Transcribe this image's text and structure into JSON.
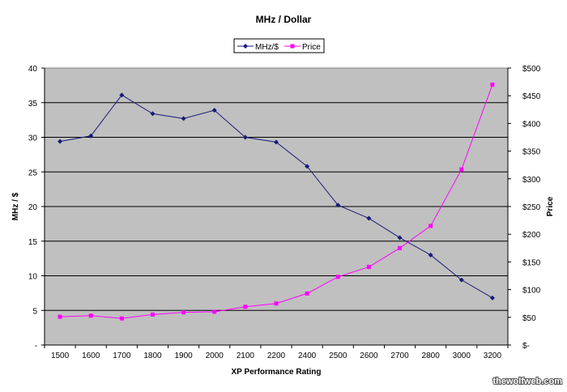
{
  "chart_data": {
    "type": "line",
    "title": "MHz / Dollar",
    "xlabel": "XP Performance Rating",
    "ylabel": "MHz / $",
    "y2label": "Price",
    "categories": [
      "1500",
      "1600",
      "1700",
      "1800",
      "1900",
      "2000",
      "2100",
      "2200",
      "2400",
      "2500",
      "2600",
      "2700",
      "2800",
      "3000",
      "3200"
    ],
    "ylim": [
      0,
      40
    ],
    "y2lim": [
      0,
      500
    ],
    "yticks": [
      "-",
      "5",
      "10",
      "15",
      "20",
      "25",
      "30",
      "35",
      "40"
    ],
    "y2ticks": [
      "$-",
      "$50",
      "$100",
      "$150",
      "$200",
      "$250",
      "$300",
      "$350",
      "$400",
      "$450",
      "$500"
    ],
    "grid": true,
    "legend_position": "top",
    "series": [
      {
        "name": "MHz/$",
        "axis": "left",
        "color": "#1a1a7a",
        "marker": "diamond",
        "values": [
          29.4,
          30.2,
          36.1,
          33.4,
          32.7,
          33.9,
          30.0,
          29.3,
          25.8,
          20.2,
          18.3,
          15.5,
          13.0,
          9.4,
          6.8
        ]
      },
      {
        "name": "Price",
        "axis": "right",
        "color": "#ff00ff",
        "marker": "square",
        "values": [
          51,
          53,
          48,
          55,
          59,
          60,
          69,
          75,
          93,
          123,
          141,
          175,
          215,
          317,
          470
        ]
      }
    ],
    "plot_background": "#c0c0c0"
  },
  "watermark": "thewolfweb.com"
}
